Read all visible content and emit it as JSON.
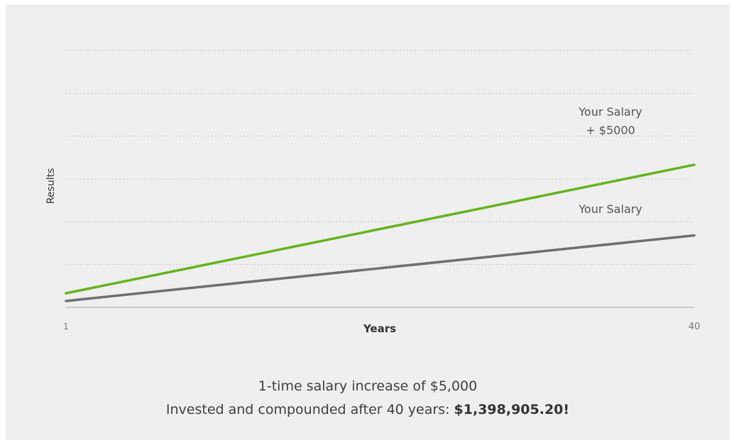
{
  "chart_data": {
    "type": "line",
    "xlabel": "Years",
    "ylabel": "Results",
    "x": [
      1,
      40
    ],
    "xticks": [
      "1",
      "40"
    ],
    "xlim": [
      1,
      40
    ],
    "ylim": [
      0,
      6
    ],
    "grid": true,
    "series": [
      {
        "name": "Your Salary + $5000",
        "label_lines": [
          "Your Salary",
          "+ $5000"
        ],
        "x": [
          1,
          40
        ],
        "values": [
          0.33,
          3.33
        ],
        "color": "#66b31e"
      },
      {
        "name": "Your Salary",
        "label_lines": [
          "Your Salary"
        ],
        "x": [
          1,
          40
        ],
        "values": [
          0.15,
          1.68
        ],
        "color": "#6f6f6f"
      }
    ]
  },
  "caption": {
    "line1": "1-time salary increase of $5,000",
    "line2_text": "Invested and compounded after 40 years: ",
    "line2_amount": "$1,398,905.20!"
  }
}
